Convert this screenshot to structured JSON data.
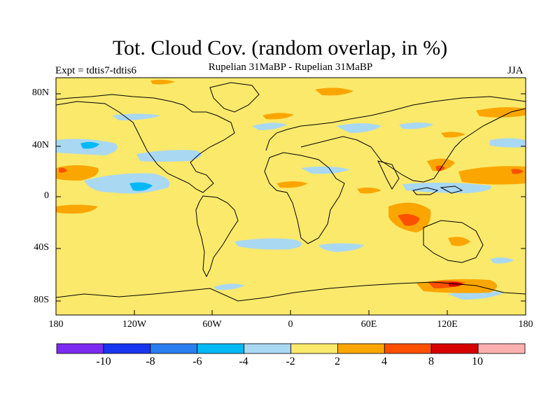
{
  "title": "Tot. Cloud Cov. (random overlap, in %)",
  "subtitle": "Rupelian  31MaBP - Rupelian  31MaBP",
  "left_label": "Expt = tdtis7-tdtis6",
  "right_label": "JJA",
  "lat_ticks": [
    "80N",
    "40N",
    "0",
    "40S",
    "80S"
  ],
  "lon_ticks": [
    "180",
    "120W",
    "60W",
    "0",
    "60E",
    "120E",
    "180"
  ],
  "colorbar": {
    "colors": [
      "#7b2bef",
      "#1a35f0",
      "#2a7ff0",
      "#00b9f5",
      "#a9d8f3",
      "#fbe96b",
      "#fba600",
      "#fb5000",
      "#d60000",
      "#fbb0b0"
    ],
    "labels": [
      "-10",
      "-8",
      "-6",
      "-4",
      "-2",
      "2",
      "4",
      "8",
      "10"
    ]
  },
  "colors": {
    "background_field": "#fbe96b",
    "coast": "#000000"
  }
}
